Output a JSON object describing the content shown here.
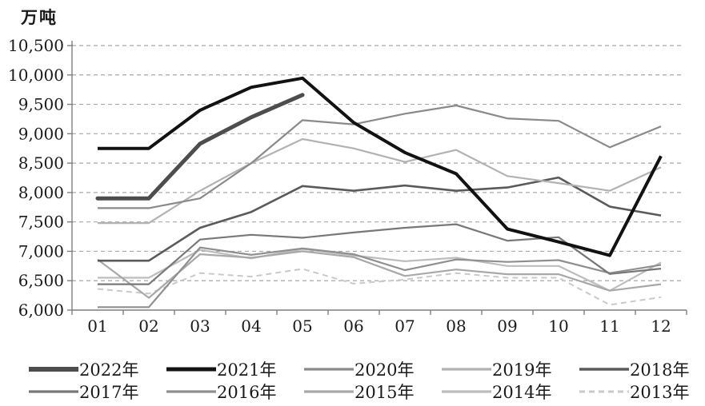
{
  "figure": {
    "background": "#ffffff"
  },
  "chart_data": {
    "type": "line",
    "title": "",
    "xlabel": "",
    "ylabel": "万吨",
    "categories": [
      "01",
      "02",
      "03",
      "04",
      "05",
      "06",
      "07",
      "08",
      "09",
      "10",
      "11",
      "12"
    ],
    "ylim": [
      6000,
      10500
    ],
    "ytick_step": 500,
    "ytick_labels": [
      "10,500",
      "10,000",
      "9,500",
      "9,000",
      "8,500",
      "8,000",
      "7,500",
      "7,000",
      "6,500",
      "6,000"
    ],
    "grid": "horizontal-dashed",
    "legend_position": "bottom-two-rows",
    "axis_color": "#7f7f7f",
    "grid_color": "#a8a8a8",
    "text_color": "#1a1a1a",
    "series": [
      {
        "name": "2022年",
        "color": "#4d4d4d",
        "width": 5,
        "dash": null,
        "cap": "round",
        "values": [
          7900,
          7900,
          8830,
          9280,
          9660,
          null,
          null,
          null,
          null,
          null,
          null,
          null
        ]
      },
      {
        "name": "2021年",
        "color": "#121212",
        "width": 4,
        "dash": null,
        "cap": "butt",
        "values": [
          8750,
          8750,
          9400,
          9790,
          9945,
          9190,
          8680,
          8320,
          7380,
          7160,
          6930,
          8620
        ]
      },
      {
        "name": "2020年",
        "color": "#8a8a8a",
        "width": 2.2,
        "dash": null,
        "cap": "butt",
        "values": [
          7735,
          7735,
          7900,
          8500,
          9230,
          9160,
          9340,
          9480,
          9260,
          9220,
          8770,
          9125
        ]
      },
      {
        "name": "2019年",
        "color": "#b2b2b2",
        "width": 2.2,
        "dash": null,
        "cap": "butt",
        "values": [
          7480,
          7480,
          8030,
          8500,
          8910,
          8750,
          8520,
          8725,
          8280,
          8160,
          8030,
          8430
        ]
      },
      {
        "name": "2018年",
        "color": "#5a5a5a",
        "width": 2.6,
        "dash": null,
        "cap": "butt",
        "values": [
          6840,
          6840,
          7400,
          7670,
          8110,
          8030,
          8120,
          8030,
          8085,
          8255,
          7760,
          7610
        ]
      },
      {
        "name": "2017年",
        "color": "#787878",
        "width": 2.2,
        "dash": null,
        "cap": "butt",
        "values": [
          6440,
          6440,
          7200,
          7280,
          7230,
          7320,
          7400,
          7460,
          7180,
          7240,
          6615,
          6705
        ]
      },
      {
        "name": "2016年",
        "color": "#8f8f8f",
        "width": 2.2,
        "dash": null,
        "cap": "butt",
        "values": [
          6050,
          6050,
          7065,
          6940,
          7050,
          6950,
          6680,
          6860,
          6820,
          6850,
          6630,
          6770
        ]
      },
      {
        "name": "2015年",
        "color": "#a8a8a8",
        "width": 2.2,
        "dash": null,
        "cap": "butt",
        "values": [
          6860,
          6210,
          6950,
          6890,
          7000,
          6900,
          6580,
          6690,
          6610,
          6610,
          6330,
          6440
        ]
      },
      {
        "name": "2014年",
        "color": "#bdbdbd",
        "width": 2.2,
        "dash": null,
        "cap": "butt",
        "values": [
          6550,
          6550,
          7025,
          6880,
          7040,
          6930,
          6830,
          6890,
          6750,
          6750,
          6330,
          6810
        ]
      },
      {
        "name": "2013年",
        "color": "#c9c9c9",
        "width": 2,
        "dash": "7 5",
        "cap": "butt",
        "values": [
          6360,
          6280,
          6630,
          6570,
          6700,
          6450,
          6520,
          6630,
          6550,
          6550,
          6090,
          6220
        ]
      }
    ]
  }
}
